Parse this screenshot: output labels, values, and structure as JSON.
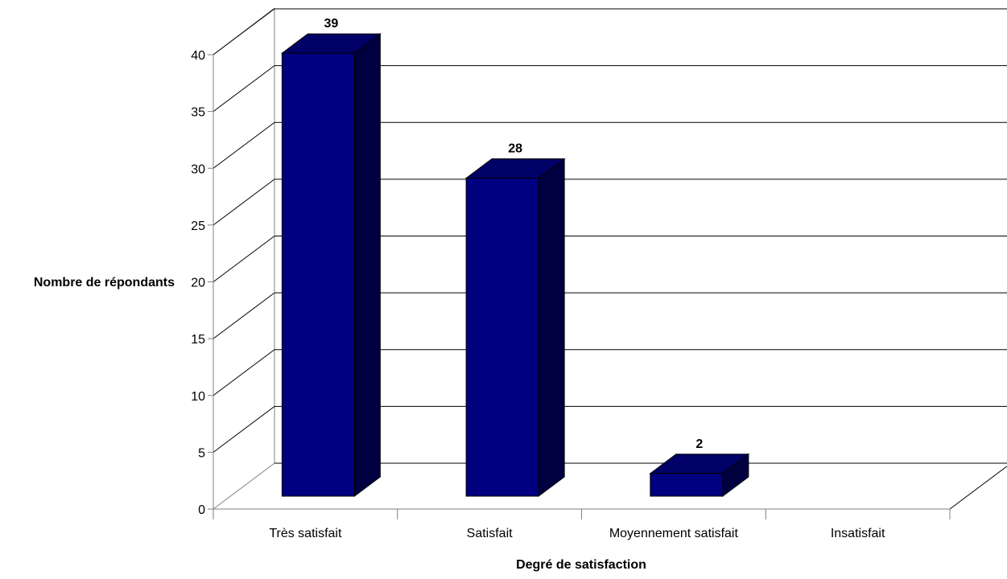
{
  "chart_data": {
    "type": "bar",
    "title": "",
    "categories": [
      "Très satisfait",
      "Satisfait",
      "Moyennement satisfait",
      "Insatisfait"
    ],
    "values": [
      39,
      28,
      2,
      0
    ],
    "data_labels": [
      "39",
      "28",
      "2",
      ""
    ],
    "xlabel": "Degré de satisfaction",
    "ylabel": "Nombre de répondants",
    "ylim": [
      0,
      40
    ],
    "yticks": [
      0,
      5,
      10,
      15,
      20,
      25,
      30,
      35,
      40
    ],
    "grid": true,
    "style": "3d",
    "legend": "none",
    "colors": {
      "bar_front": "#000080",
      "bar_top": "#000066",
      "bar_side": "#000040",
      "bar_edge": "#000000",
      "grid": "#000000",
      "wall": "#808080"
    }
  }
}
